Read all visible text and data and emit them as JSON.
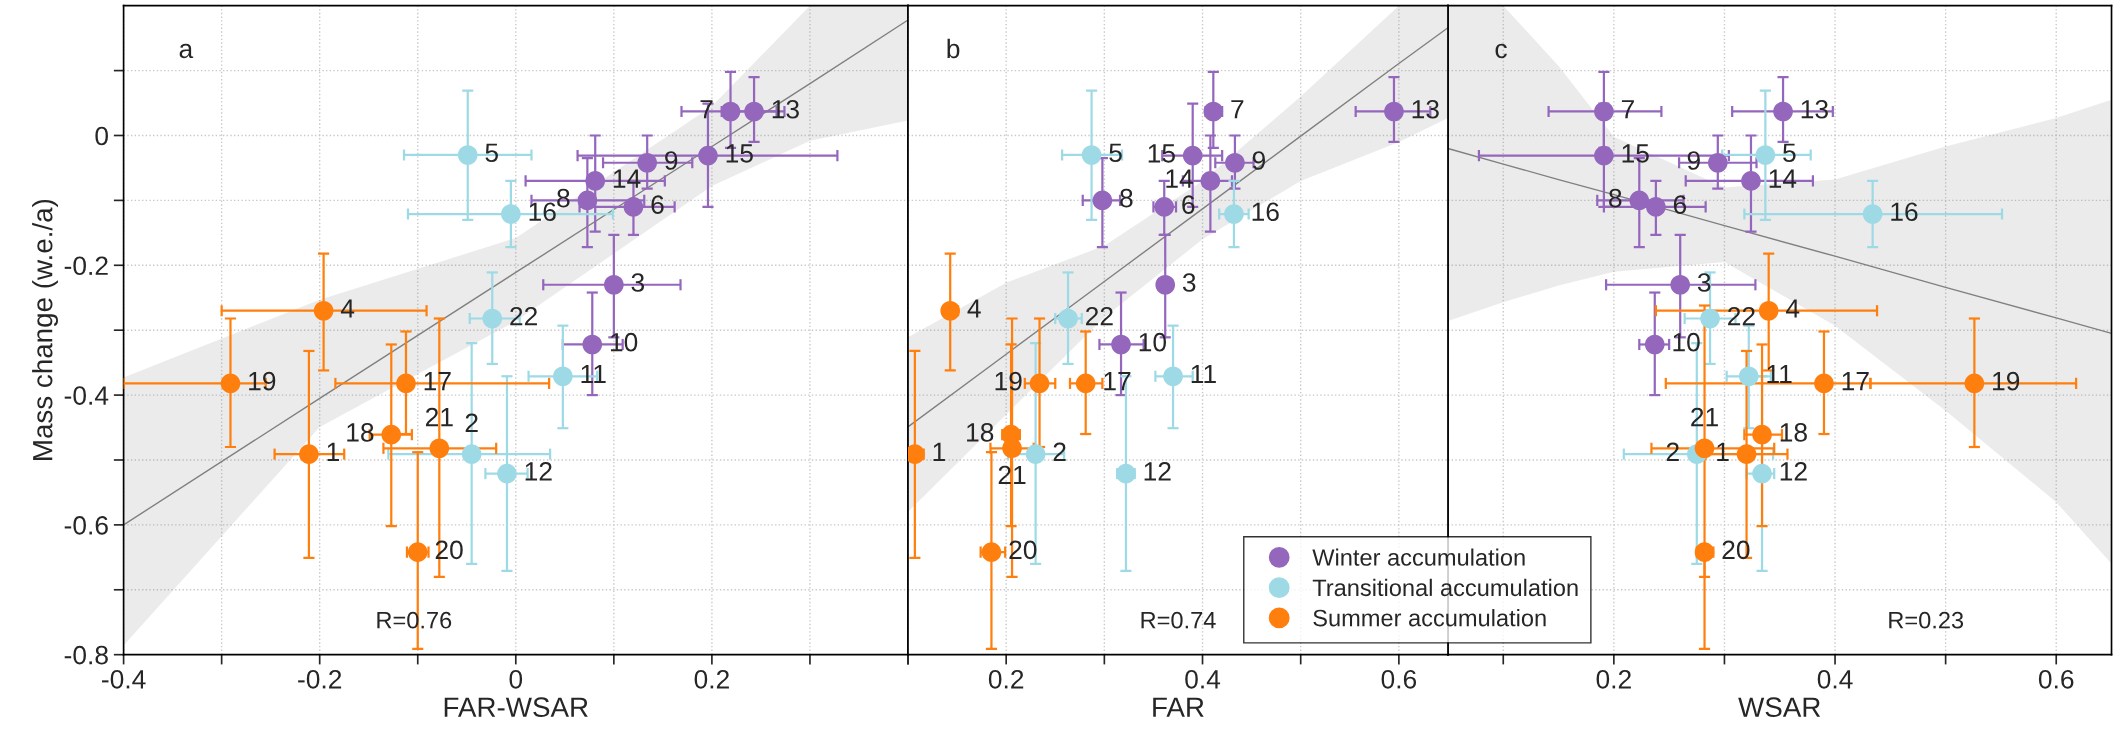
{
  "chart_data": [
    {
      "type": "scatter",
      "xlabel": "FAR-WSAR",
      "ylabel": "Mass change (w.e./a)",
      "grid": true,
      "annotations": [
        "a",
        "R=0.76",
        {
          "text": "3",
          "x": 0.1,
          "y": -0.23
        },
        {
          "text": "6",
          "x": 0.12,
          "y": -0.11
        },
        {
          "text": "7",
          "x": 0.219,
          "y": 0.037
        },
        {
          "text": "8",
          "x": 0.073,
          "y": -0.1
        },
        {
          "text": "9",
          "x": 0.134,
          "y": -0.042
        },
        {
          "text": "10",
          "x": 0.078,
          "y": -0.322
        },
        {
          "text": "13",
          "x": 0.243,
          "y": 0.037
        },
        {
          "text": "14",
          "x": 0.081,
          "y": -0.07
        },
        {
          "text": "15",
          "x": 0.196,
          "y": -0.031
        },
        {
          "text": "2",
          "x": -0.045,
          "y": -0.491
        },
        {
          "text": "5",
          "x": -0.049,
          "y": -0.03
        },
        {
          "text": "11",
          "x": 0.048,
          "y": -0.371
        },
        {
          "text": "12",
          "x": -0.009,
          "y": -0.521
        },
        {
          "text": "16",
          "x": -0.005,
          "y": -0.121
        },
        {
          "text": "22",
          "x": -0.024,
          "y": -0.282
        },
        {
          "text": "1",
          "x": -0.211,
          "y": -0.491
        },
        {
          "text": "4",
          "x": -0.196,
          "y": -0.27
        },
        {
          "text": "17",
          "x": -0.112,
          "y": -0.382
        },
        {
          "text": "18",
          "x": -0.127,
          "y": -0.461
        },
        {
          "text": "19",
          "x": -0.291,
          "y": -0.382
        },
        {
          "text": "20",
          "x": -0.1,
          "y": -0.642
        },
        {
          "text": "21",
          "x": -0.078,
          "y": -0.482
        }
      ],
      "xlim": [
        -0.4,
        0.4
      ],
      "xticks": [
        -0.4,
        {
          "value": -0.3,
          "label": null
        },
        -0.2,
        {
          "value": -0.1,
          "label": null
        },
        0,
        {
          "value": 0.1,
          "label": null
        },
        0.2,
        {
          "value": 0.3,
          "label": null
        },
        {
          "value": 0.4,
          "label": null
        }
      ],
      "ylim": [
        -0.8,
        0.2
      ],
      "yticks": [
        -0.8,
        {
          "value": -0.7,
          "label": null
        },
        -0.6,
        {
          "value": -0.5,
          "label": null
        },
        -0.4,
        {
          "value": -0.3,
          "label": null
        },
        -0.2,
        {
          "value": -0.1,
          "label": null
        },
        0,
        {
          "value": 0.1,
          "label": null
        }
      ],
      "series": [
        {
          "type": "line",
          "color": "#808080",
          "x": [
            -0.4,
            -0.2,
            0,
            0.2,
            0.3,
            0.4
          ],
          "values": [
            -0.6,
            -0.405,
            -0.211,
            -0.017,
            0.08,
            0.178
          ],
          "lower": [
            -0.786,
            -0.449,
            -0.286,
            -0.078,
            -0.008,
            0.023
          ],
          "upper": [
            -0.373,
            -0.253,
            -0.158,
            0.045,
            0.2,
            0.2
          ]
        },
        {
          "color": "#9467bd",
          "marker": "circle",
          "x": [
            0.1,
            0.12,
            0.219,
            0.073,
            0.134,
            0.078,
            0.243,
            0.081,
            0.196
          ],
          "values": [
            -0.23,
            -0.11,
            0.037,
            -0.1,
            -0.042,
            -0.322,
            0.037,
            -0.07,
            -0.031
          ],
          "errors": [
            [
              -0.311,
              -0.153
            ],
            [
              -0.153,
              -0.07
            ],
            [
              -0.019,
              0.098
            ],
            [
              -0.172,
              -0.035
            ],
            [
              -0.082,
              0.0
            ],
            [
              -0.4,
              -0.242
            ],
            [
              -0.01,
              0.09
            ],
            [
              -0.148,
              0.0
            ],
            [
              -0.11,
              0.049
            ]
          ],
          "xerrors": [
            [
              0.028,
              0.168
            ],
            [
              0.065,
              0.162
            ],
            [
              0.169,
              0.266
            ],
            [
              0.016,
              0.131
            ],
            [
              0.089,
              0.18
            ],
            [
              0.048,
              0.109
            ],
            [
              0.21,
              0.274
            ],
            [
              0.01,
              0.152
            ],
            [
              0.063,
              0.328
            ]
          ]
        },
        {
          "color": "#9edae5",
          "marker": "circle",
          "x": [
            -0.045,
            -0.049,
            0.048,
            -0.009,
            -0.005,
            -0.024
          ],
          "values": [
            -0.491,
            -0.03,
            -0.371,
            -0.521,
            -0.121,
            -0.282
          ],
          "errors": [
            [
              -0.66,
              -0.32
            ],
            [
              -0.13,
              0.069
            ],
            [
              -0.451,
              -0.293
            ],
            [
              -0.671,
              -0.371
            ],
            [
              -0.172,
              -0.07
            ],
            [
              -0.352,
              -0.211
            ]
          ],
          "xerrors": [
            [
              -0.13,
              0.035
            ],
            [
              -0.114,
              0.016
            ],
            [
              0.013,
              0.083
            ],
            [
              -0.031,
              0.012
            ],
            [
              -0.11,
              0.099
            ],
            [
              -0.047,
              0.004
            ]
          ]
        },
        {
          "color": "#ff7f0e",
          "marker": "circle",
          "x": [
            -0.211,
            -0.196,
            -0.112,
            -0.127,
            -0.291,
            -0.1,
            -0.078
          ],
          "values": [
            -0.491,
            -0.27,
            -0.382,
            -0.461,
            -0.382,
            -0.642,
            -0.482
          ],
          "errors": [
            [
              -0.651,
              -0.332
            ],
            [
              -0.362,
              -0.182
            ],
            [
              -0.46,
              -0.302
            ],
            [
              -0.602,
              -0.322
            ],
            [
              -0.48,
              -0.282
            ],
            [
              -0.791,
              -0.488
            ],
            [
              -0.68,
              -0.282
            ]
          ],
          "xerrors": [
            [
              -0.246,
              -0.175
            ],
            [
              -0.3,
              -0.091
            ],
            [
              -0.184,
              0.034
            ],
            [
              -0.149,
              -0.106
            ],
            [
              -0.4,
              -0.255
            ],
            [
              -0.111,
              -0.089
            ],
            [
              -0.135,
              -0.02
            ]
          ]
        }
      ]
    },
    {
      "type": "scatter",
      "xlabel": "FAR",
      "grid": true,
      "legend": "bottom right",
      "tick_labels": "x",
      "annotations": [
        "b",
        "R=0.74",
        {
          "text": "3",
          "x": 0.362,
          "y": -0.23
        },
        {
          "text": "6",
          "x": 0.361,
          "y": -0.11
        },
        {
          "text": "7",
          "x": 0.411,
          "y": 0.037
        },
        {
          "text": "8",
          "x": 0.298,
          "y": -0.1
        },
        {
          "text": "9",
          "x": 0.433,
          "y": -0.042
        },
        {
          "text": "10",
          "x": 0.317,
          "y": -0.322
        },
        {
          "text": "13",
          "x": 0.595,
          "y": 0.037
        },
        {
          "text": "14",
          "x": 0.408,
          "y": -0.07
        },
        {
          "text": "15",
          "x": 0.39,
          "y": -0.031
        },
        {
          "text": "2",
          "x": 0.23,
          "y": -0.491
        },
        {
          "text": "5",
          "x": 0.287,
          "y": -0.03
        },
        {
          "text": "11",
          "x": 0.37,
          "y": -0.371
        },
        {
          "text": "12",
          "x": 0.322,
          "y": -0.521
        },
        {
          "text": "16",
          "x": 0.432,
          "y": -0.121
        },
        {
          "text": "22",
          "x": 0.263,
          "y": -0.282
        },
        {
          "text": "1",
          "x": 0.107,
          "y": -0.491
        },
        {
          "text": "4",
          "x": 0.143,
          "y": -0.27
        },
        {
          "text": "17",
          "x": 0.281,
          "y": -0.382
        },
        {
          "text": "18",
          "x": 0.205,
          "y": -0.461
        },
        {
          "text": "19",
          "x": 0.234,
          "y": -0.382
        },
        {
          "text": "20",
          "x": 0.185,
          "y": -0.642
        },
        {
          "text": "21",
          "x": 0.206,
          "y": -0.482
        }
      ],
      "xlim": [
        0.1,
        0.65
      ],
      "xticks": [
        {
          "value": 0.1,
          "label": null
        },
        0.2,
        {
          "value": 0.3,
          "label": null
        },
        0.4,
        {
          "value": 0.5,
          "label": null
        },
        0.6
      ],
      "ylim": [
        -0.8,
        0.2
      ],
      "yticks": [
        -0.8,
        -0.7,
        -0.6,
        -0.5,
        -0.4,
        -0.3,
        -0.2,
        -0.1,
        0,
        0.1
      ],
      "series": [
        {
          "type": "line",
          "color": "#808080",
          "x": [
            0.1,
            0.2,
            0.3,
            0.4,
            0.5,
            0.6,
            0.65
          ],
          "values": [
            -0.449,
            -0.337,
            -0.225,
            -0.113,
            -0.001,
            0.111,
            0.166
          ],
          "lower": [
            -0.58,
            -0.43,
            -0.28,
            -0.16,
            -0.07,
            -0.01,
            0.027
          ],
          "upper": [
            -0.311,
            -0.227,
            -0.17,
            -0.07,
            0.06,
            0.2,
            0.2
          ]
        },
        {
          "name": "Winter accumulation",
          "color": "#9467bd",
          "marker": "circle",
          "x": [
            0.362,
            0.361,
            0.411,
            0.298,
            0.433,
            0.317,
            0.595,
            0.408,
            0.39
          ],
          "values": [
            -0.23,
            -0.11,
            0.037,
            -0.1,
            -0.042,
            -0.322,
            0.037,
            -0.07,
            -0.031
          ],
          "errors": [
            [
              -0.311,
              -0.153
            ],
            [
              -0.153,
              -0.07
            ],
            [
              -0.019,
              0.098
            ],
            [
              -0.172,
              -0.035
            ],
            [
              -0.082,
              0.0
            ],
            [
              -0.4,
              -0.242
            ],
            [
              -0.01,
              0.09
            ],
            [
              -0.148,
              0.0
            ],
            [
              -0.11,
              0.049
            ]
          ],
          "xerrors": [
            [
              0.355,
              0.369
            ],
            [
              0.35,
              0.373
            ],
            [
              0.403,
              0.42
            ],
            [
              0.278,
              0.316
            ],
            [
              0.413,
              0.452
            ],
            [
              0.295,
              0.34
            ],
            [
              0.556,
              0.632
            ],
            [
              0.38,
              0.43
            ],
            [
              0.359,
              0.42
            ]
          ]
        },
        {
          "name": "Transitional accumulation",
          "color": "#9edae5",
          "marker": "circle",
          "x": [
            0.23,
            0.287,
            0.37,
            0.322,
            0.432,
            0.263
          ],
          "values": [
            -0.491,
            -0.03,
            -0.371,
            -0.521,
            -0.121,
            -0.282
          ],
          "errors": [
            [
              -0.66,
              -0.32
            ],
            [
              -0.13,
              0.069
            ],
            [
              -0.451,
              -0.293
            ],
            [
              -0.671,
              -0.371
            ],
            [
              -0.172,
              -0.07
            ],
            [
              -0.352,
              -0.211
            ]
          ],
          "xerrors": [
            [
              0.202,
              0.259
            ],
            [
              0.257,
              0.318
            ],
            [
              0.352,
              0.39
            ],
            [
              0.313,
              0.331
            ],
            [
              0.417,
              0.447
            ],
            [
              0.25,
              0.277
            ]
          ]
        },
        {
          "name": "Summer accumulation",
          "color": "#ff7f0e",
          "marker": "circle",
          "x": [
            0.107,
            0.143,
            0.281,
            0.205,
            0.234,
            0.185,
            0.206
          ],
          "values": [
            -0.491,
            -0.27,
            -0.382,
            -0.461,
            -0.382,
            -0.642,
            -0.482
          ],
          "errors": [
            [
              -0.651,
              -0.332
            ],
            [
              -0.362,
              -0.182
            ],
            [
              -0.46,
              -0.302
            ],
            [
              -0.602,
              -0.322
            ],
            [
              -0.48,
              -0.282
            ],
            [
              -0.791,
              -0.488
            ],
            [
              -0.68,
              -0.282
            ]
          ],
          "xerrors": [
            [
              0.099,
              0.116
            ],
            [
              0.136,
              0.151
            ],
            [
              0.265,
              0.298
            ],
            [
              0.196,
              0.214
            ],
            [
              0.219,
              0.25
            ],
            [
              0.174,
              0.199
            ],
            [
              0.184,
              0.228
            ]
          ]
        }
      ]
    },
    {
      "type": "scatter",
      "xlabel": "WSAR",
      "grid": true,
      "tick_labels": "x",
      "annotations": [
        "c",
        "R=0.23",
        {
          "text": "3",
          "x": 0.26,
          "y": -0.23
        },
        {
          "text": "6",
          "x": 0.238,
          "y": -0.11
        },
        {
          "text": "7",
          "x": 0.191,
          "y": 0.037
        },
        {
          "text": "8",
          "x": 0.223,
          "y": -0.1
        },
        {
          "text": "9",
          "x": 0.294,
          "y": -0.042
        },
        {
          "text": "10",
          "x": 0.237,
          "y": -0.322
        },
        {
          "text": "13",
          "x": 0.353,
          "y": 0.037
        },
        {
          "text": "14",
          "x": 0.324,
          "y": -0.07
        },
        {
          "text": "15",
          "x": 0.191,
          "y": -0.031
        },
        {
          "text": "2",
          "x": 0.275,
          "y": -0.491
        },
        {
          "text": "5",
          "x": 0.337,
          "y": -0.03
        },
        {
          "text": "11",
          "x": 0.322,
          "y": -0.371
        },
        {
          "text": "12",
          "x": 0.334,
          "y": -0.521
        },
        {
          "text": "16",
          "x": 0.434,
          "y": -0.121
        },
        {
          "text": "22",
          "x": 0.287,
          "y": -0.282
        },
        {
          "text": "1",
          "x": 0.32,
          "y": -0.491
        },
        {
          "text": "4",
          "x": 0.34,
          "y": -0.27
        },
        {
          "text": "17",
          "x": 0.39,
          "y": -0.382
        },
        {
          "text": "18",
          "x": 0.334,
          "y": -0.461
        },
        {
          "text": "19",
          "x": 0.526,
          "y": -0.382
        },
        {
          "text": "20",
          "x": 0.282,
          "y": -0.642
        },
        {
          "text": "21",
          "x": 0.282,
          "y": -0.482
        }
      ],
      "xlim": [
        0.05,
        0.65
      ],
      "xticks": [
        {
          "value": 0.1,
          "label": null
        },
        0.2,
        {
          "value": 0.3,
          "label": null
        },
        0.4,
        {
          "value": 0.5,
          "label": null
        },
        0.6
      ],
      "ylim": [
        -0.8,
        0.2
      ],
      "yticks": [
        -0.8,
        -0.7,
        -0.6,
        -0.5,
        -0.4,
        -0.3,
        -0.2,
        -0.1,
        0,
        0.1
      ],
      "series": [
        {
          "type": "line",
          "color": "#808080",
          "x": [
            0.05,
            0.1,
            0.15,
            0.2,
            0.3,
            0.4,
            0.5,
            0.6,
            0.65
          ],
          "values": [
            -0.02,
            -0.044,
            -0.068,
            -0.091,
            -0.139,
            -0.186,
            -0.234,
            -0.281,
            -0.305
          ],
          "lower": [
            -0.286,
            -0.257,
            -0.231,
            -0.21,
            -0.195,
            -0.293,
            -0.424,
            -0.565,
            -0.66
          ],
          "upper": [
            0.2,
            0.2,
            0.107,
            -0.002,
            -0.08,
            -0.068,
            -0.017,
            0.027,
            0.055
          ]
        },
        {
          "color": "#9467bd",
          "marker": "circle",
          "x": [
            0.26,
            0.238,
            0.191,
            0.223,
            0.294,
            0.237,
            0.353,
            0.324,
            0.191
          ],
          "values": [
            -0.23,
            -0.11,
            0.037,
            -0.1,
            -0.042,
            -0.322,
            0.037,
            -0.07,
            -0.031
          ],
          "errors": [
            [
              -0.311,
              -0.153
            ],
            [
              -0.153,
              -0.07
            ],
            [
              -0.019,
              0.098
            ],
            [
              -0.172,
              -0.035
            ],
            [
              -0.082,
              0.0
            ],
            [
              -0.4,
              -0.242
            ],
            [
              -0.01,
              0.09
            ],
            [
              -0.148,
              0.0
            ],
            [
              -0.11,
              0.049
            ]
          ],
          "xerrors": [
            [
              0.193,
              0.328
            ],
            [
              0.191,
              0.283
            ],
            [
              0.141,
              0.243
            ],
            [
              0.185,
              0.263
            ],
            [
              0.259,
              0.329
            ],
            [
              0.223,
              0.25
            ],
            [
              0.307,
              0.398
            ],
            [
              0.265,
              0.38
            ],
            [
              0.078,
              0.304
            ]
          ]
        },
        {
          "color": "#9edae5",
          "marker": "circle",
          "x": [
            0.275,
            0.337,
            0.322,
            0.334,
            0.434,
            0.287
          ],
          "values": [
            -0.491,
            -0.03,
            -0.371,
            -0.521,
            -0.121,
            -0.282
          ],
          "errors": [
            [
              -0.66,
              -0.32
            ],
            [
              -0.13,
              0.069
            ],
            [
              -0.451,
              -0.293
            ],
            [
              -0.671,
              -0.371
            ],
            [
              -0.172,
              -0.07
            ],
            [
              -0.352,
              -0.211
            ]
          ],
          "xerrors": [
            [
              0.209,
              0.344
            ],
            [
              0.298,
              0.378
            ],
            [
              0.302,
              0.342
            ],
            [
              0.32,
              0.345
            ],
            [
              0.318,
              0.551
            ],
            [
              0.264,
              0.31
            ]
          ]
        },
        {
          "color": "#ff7f0e",
          "marker": "circle",
          "x": [
            0.32,
            0.34,
            0.39,
            0.334,
            0.526,
            0.282,
            0.282
          ],
          "values": [
            -0.491,
            -0.27,
            -0.382,
            -0.461,
            -0.382,
            -0.642,
            -0.482
          ],
          "errors": [
            [
              -0.651,
              -0.332
            ],
            [
              -0.362,
              -0.182
            ],
            [
              -0.46,
              -0.302
            ],
            [
              -0.602,
              -0.322
            ],
            [
              -0.48,
              -0.282
            ],
            [
              -0.791,
              -0.642
            ],
            [
              -0.68,
              -0.262
            ]
          ],
          "xerrors": [
            [
              0.283,
              0.357
            ],
            [
              0.238,
              0.438
            ],
            [
              0.247,
              0.432
            ],
            [
              0.318,
              0.352
            ],
            [
              0.432,
              0.618
            ],
            [
              0.275,
              0.29
            ],
            [
              0.234,
              0.345
            ]
          ]
        }
      ]
    }
  ]
}
